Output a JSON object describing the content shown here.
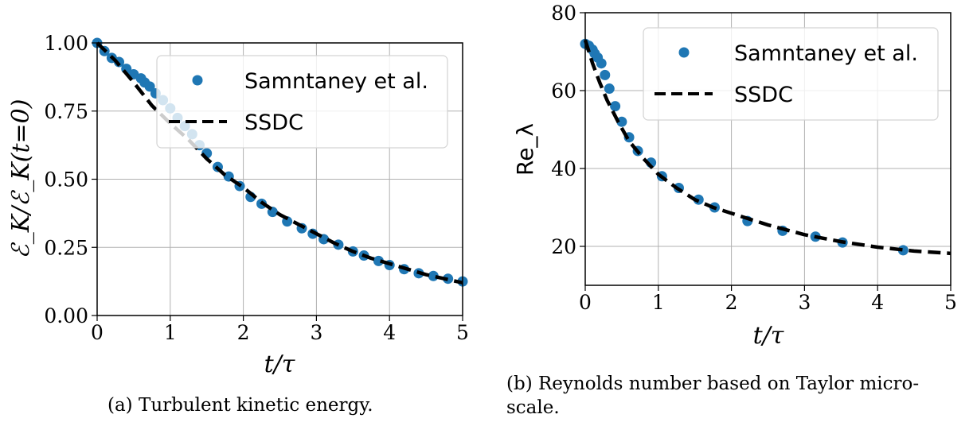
{
  "chart_data": [
    {
      "type": "scatter",
      "xlabel": "t/τ",
      "ylabel": "ℰ_K/ℰ_K(t=0)",
      "xlim": [
        0,
        5
      ],
      "ylim": [
        0,
        1
      ],
      "xticks": [
        "0",
        "1",
        "2",
        "3",
        "4",
        "5"
      ],
      "yticks": [
        "0.00",
        "0.25",
        "0.50",
        "0.75",
        "1.00"
      ],
      "grid": true,
      "legend_position": "top-right",
      "caption_label": "(a)",
      "caption_text": "Turbulent kinetic energy.",
      "series": [
        {
          "name": "Samntaney et al.",
          "style": "markers",
          "color": "#1f77b4",
          "x": [
            0.0,
            0.1,
            0.2,
            0.3,
            0.4,
            0.5,
            0.6,
            0.65,
            0.72,
            0.8,
            0.9,
            1.0,
            1.1,
            1.2,
            1.3,
            1.4,
            1.5,
            1.65,
            1.8,
            1.95,
            2.1,
            2.25,
            2.4,
            2.6,
            2.8,
            2.95,
            3.1,
            3.3,
            3.5,
            3.65,
            3.85,
            4.0,
            4.2,
            4.4,
            4.6,
            4.8,
            5.0
          ],
          "y": [
            1.0,
            0.97,
            0.945,
            0.93,
            0.905,
            0.885,
            0.87,
            0.855,
            0.84,
            0.815,
            0.79,
            0.76,
            0.725,
            0.695,
            0.665,
            0.625,
            0.595,
            0.545,
            0.51,
            0.475,
            0.435,
            0.41,
            0.38,
            0.345,
            0.32,
            0.3,
            0.28,
            0.26,
            0.235,
            0.22,
            0.2,
            0.185,
            0.17,
            0.155,
            0.145,
            0.135,
            0.125
          ]
        },
        {
          "name": "SSDC",
          "style": "dashed",
          "color": "#000000",
          "x": [
            0,
            0.25,
            0.5,
            0.75,
            1.0,
            1.25,
            1.5,
            1.75,
            2.0,
            2.25,
            2.5,
            2.75,
            3.0,
            3.25,
            3.5,
            3.75,
            4.0,
            4.25,
            4.5,
            4.75,
            5.0
          ],
          "y": [
            1.0,
            0.935,
            0.855,
            0.77,
            0.705,
            0.645,
            0.575,
            0.515,
            0.47,
            0.415,
            0.37,
            0.335,
            0.3,
            0.265,
            0.235,
            0.21,
            0.19,
            0.17,
            0.15,
            0.135,
            0.12
          ]
        }
      ]
    },
    {
      "type": "scatter",
      "xlabel": "t/τ",
      "ylabel": "Re_λ",
      "xlim": [
        0,
        5
      ],
      "ylim": [
        10,
        80
      ],
      "xticks": [
        "0",
        "1",
        "2",
        "3",
        "4",
        "5"
      ],
      "yticks": [
        "20",
        "40",
        "60",
        "80"
      ],
      "grid": true,
      "legend_position": "top-right",
      "caption_label": "(b)",
      "caption_text": "Reynolds number based on Taylor micro-scale.",
      "series": [
        {
          "name": "Samntaney et al.",
          "style": "markers",
          "color": "#1f77b4",
          "x": [
            0.0,
            0.05,
            0.1,
            0.13,
            0.17,
            0.22,
            0.27,
            0.33,
            0.41,
            0.5,
            0.6,
            0.72,
            0.9,
            1.05,
            1.28,
            1.55,
            1.77,
            2.22,
            2.7,
            3.15,
            3.52,
            4.35
          ],
          "y": [
            72,
            71.5,
            70.5,
            69.5,
            68.5,
            67,
            64,
            60.5,
            56,
            52,
            48,
            44.5,
            41.5,
            38,
            35,
            32,
            30,
            26.5,
            24,
            22.5,
            21,
            19
          ]
        },
        {
          "name": "SSDC",
          "style": "dashed",
          "color": "#000000",
          "x": [
            0,
            0.1,
            0.2,
            0.3,
            0.45,
            0.6,
            0.8,
            1.0,
            1.25,
            1.5,
            1.75,
            2.0,
            2.5,
            3.0,
            3.5,
            4.0,
            4.5,
            5.0
          ],
          "y": [
            73,
            67,
            62,
            57.5,
            52,
            47,
            42.5,
            38.5,
            35,
            32,
            30,
            28.5,
            25.5,
            23,
            21.2,
            19.8,
            18.8,
            18.2
          ]
        }
      ]
    }
  ]
}
